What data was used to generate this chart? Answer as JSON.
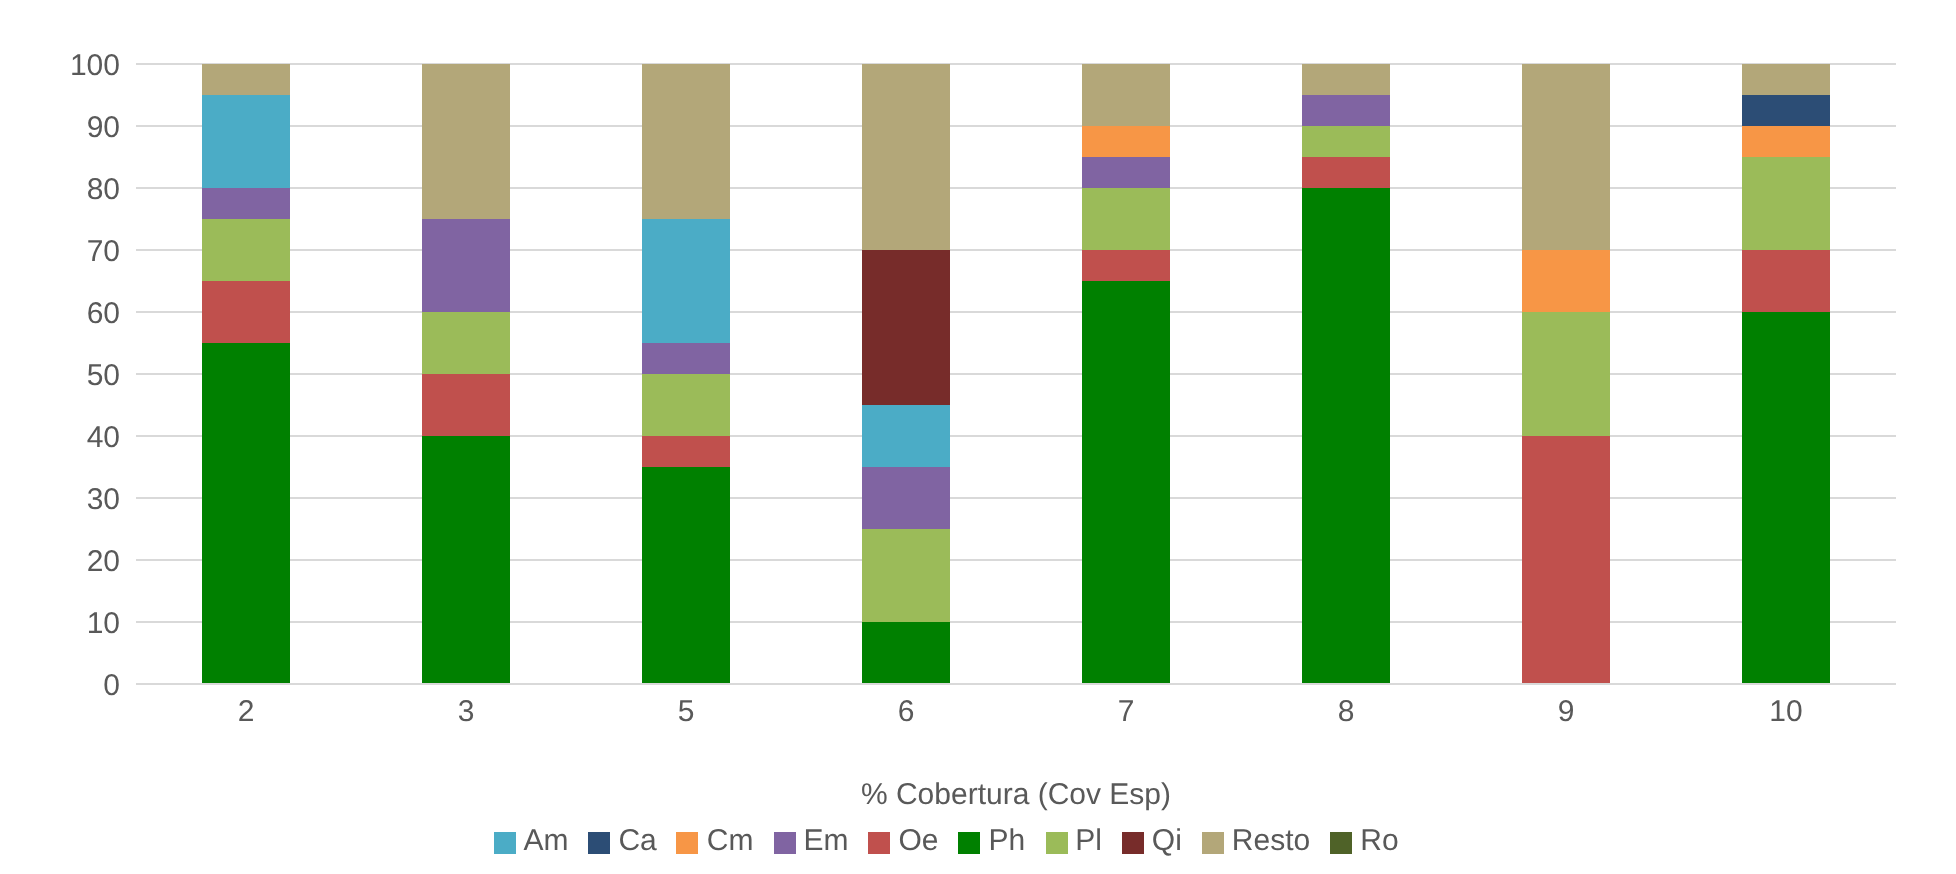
{
  "chart_data": {
    "type": "bar",
    "stacked": true,
    "xlabel": "% Cobertura (Cov Esp)",
    "categories": [
      "2",
      "3",
      "5",
      "6",
      "7",
      "8",
      "9",
      "10"
    ],
    "ylim": [
      0,
      100
    ],
    "yticks": [
      0,
      10,
      20,
      30,
      40,
      50,
      60,
      70,
      80,
      90,
      100
    ],
    "grid": "y",
    "legend": "bottom",
    "series": [
      {
        "name": "Ph",
        "color": "#008000",
        "values": [
          55,
          40,
          35,
          10,
          65,
          80,
          0,
          60
        ]
      },
      {
        "name": "Oe",
        "color": "#c0504d",
        "values": [
          10,
          10,
          5,
          0,
          5,
          5,
          40,
          10
        ]
      },
      {
        "name": "Pl",
        "color": "#9bbb59",
        "values": [
          10,
          10,
          10,
          15,
          10,
          5,
          20,
          15
        ]
      },
      {
        "name": "Em",
        "color": "#8064a2",
        "values": [
          5,
          15,
          5,
          10,
          5,
          5,
          0,
          0
        ]
      },
      {
        "name": "Am",
        "color": "#4bacc6",
        "values": [
          15,
          0,
          20,
          10,
          0,
          0,
          0,
          0
        ]
      },
      {
        "name": "Cm",
        "color": "#f79646",
        "values": [
          0,
          0,
          0,
          0,
          5,
          0,
          10,
          5
        ]
      },
      {
        "name": "Ca",
        "color": "#2c4d75",
        "values": [
          0,
          0,
          0,
          0,
          0,
          0,
          0,
          5
        ]
      },
      {
        "name": "Qi",
        "color": "#772c2a",
        "values": [
          0,
          0,
          0,
          25,
          0,
          0,
          0,
          0
        ]
      },
      {
        "name": "Ro",
        "color": "#4f6228",
        "values": [
          0,
          0,
          0,
          0,
          0,
          0,
          0,
          0
        ]
      },
      {
        "name": "Resto",
        "color": "#b3a779",
        "values": [
          5,
          25,
          25,
          30,
          10,
          5,
          30,
          5
        ]
      }
    ]
  }
}
